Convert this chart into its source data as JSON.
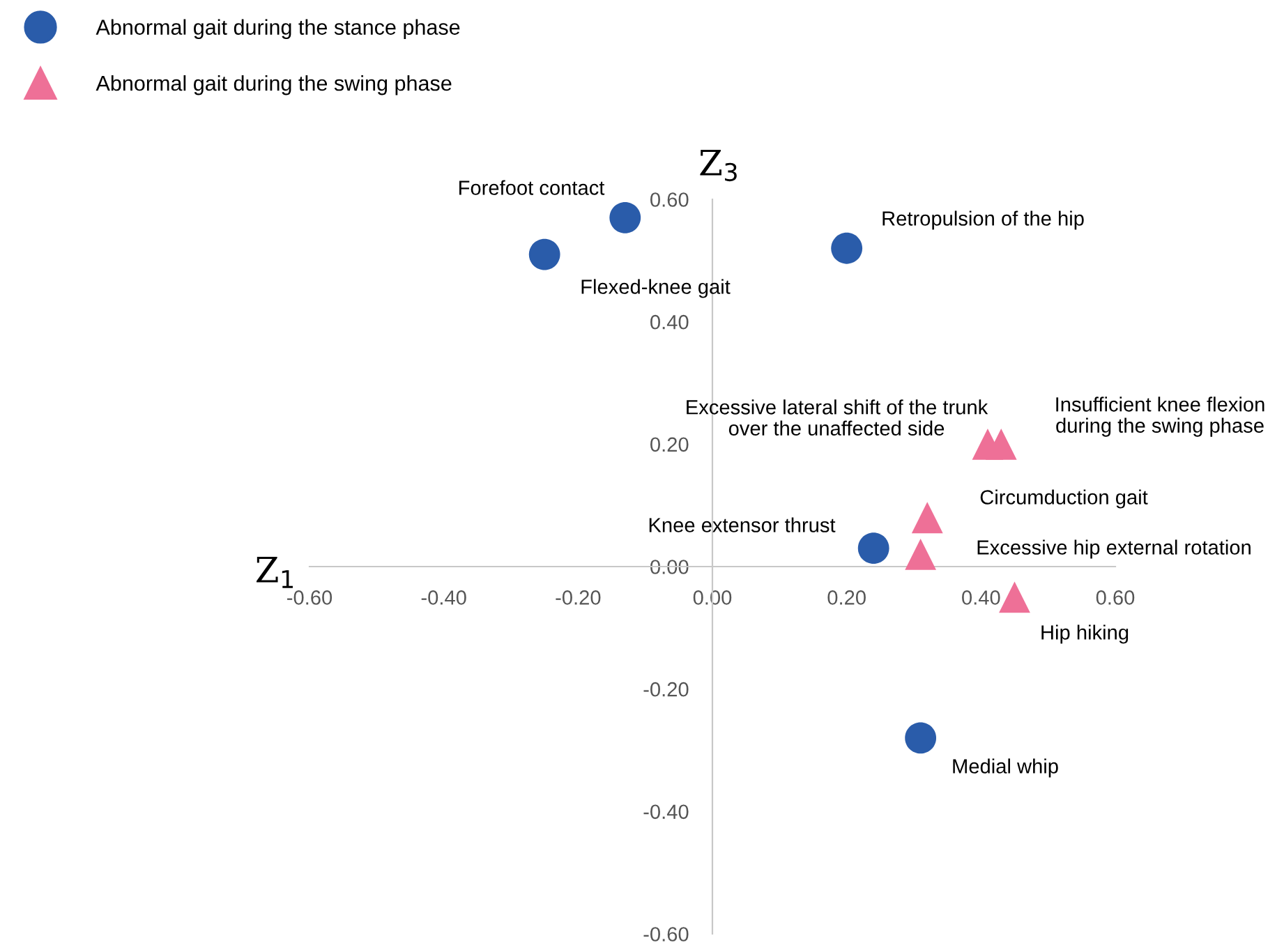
{
  "chart_data": {
    "type": "scatter",
    "xlabel": "Z$_{1}$",
    "ylabel": "Z$_{3}$",
    "xlim": [
      -0.6,
      0.6
    ],
    "ylim": [
      -0.6,
      0.6
    ],
    "xticks": [
      {
        "value": -0.6,
        "label": "-0.60"
      },
      {
        "value": -0.4,
        "label": "-0.40"
      },
      {
        "value": -0.2,
        "label": "-0.20"
      },
      {
        "value": 0,
        "label": "0.00"
      },
      {
        "value": 0.2,
        "label": "0.20"
      },
      {
        "value": 0.4,
        "label": "0.40"
      },
      {
        "value": 0.6,
        "label": "0.60"
      }
    ],
    "yticks": [
      {
        "value": -0.6,
        "label": "-0.60"
      },
      {
        "value": -0.4,
        "label": "-0.40"
      },
      {
        "value": -0.2,
        "label": "-0.20"
      },
      {
        "value": 0,
        "label": "0.00"
      },
      {
        "value": 0.2,
        "label": "0.20"
      },
      {
        "value": 0.4,
        "label": "0.40"
      },
      {
        "value": 0.6,
        "label": "0.60"
      }
    ],
    "grid": false,
    "legend": "top left",
    "series": [
      {
        "name": "Abnormal gait during the stance phase",
        "color": "#2a5caa",
        "marker": "circle",
        "x": [
          -0.13,
          -0.25,
          0.2,
          0.24,
          0.31
        ],
        "values": [
          0.57,
          0.51,
          0.52,
          0.03,
          -0.28
        ]
      },
      {
        "name": "Abnormal gait during the swing phase",
        "color": "#ee7097",
        "marker": "triangle",
        "x": [
          0.41,
          0.43,
          0.32,
          0.31,
          0.45
        ],
        "values": [
          0.2,
          0.2,
          0.08,
          0.02,
          -0.05
        ]
      }
    ],
    "annotations": [
      "Forefoot contact",
      "Flexed-knee gait",
      "Retropulsion of the hip",
      "Knee extensor thrust",
      "Medial whip",
      "Excessive lateral shift of the trunk\nover the unaffected side",
      "Insufficient knee flexion\nduring the swing phase",
      "Circumduction gait",
      "Excessive hip external rotation",
      "Hip hiking"
    ]
  }
}
